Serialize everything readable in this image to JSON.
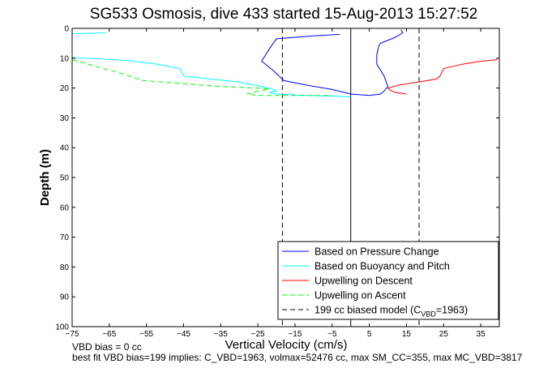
{
  "chart_data": {
    "type": "line",
    "title": "SG533 Osmosis, dive 433 started 15-Aug-2013 15:27:52",
    "xlabel": "Vertical Velocity (cm/s)",
    "ylabel": "Depth (m)",
    "xlim": [
      -75,
      40
    ],
    "ylim": [
      0,
      100
    ],
    "y_reversed": true,
    "x_ticks": [
      -75,
      -65,
      -55,
      -45,
      -35,
      -25,
      -15,
      -5,
      5,
      15,
      25,
      35
    ],
    "x_tick_labels": [
      "−75",
      "−65",
      "−55",
      "−45",
      "−35",
      "−25",
      "−15",
      "−5",
      "5",
      "15",
      "25",
      "35"
    ],
    "y_ticks": [
      0,
      10,
      20,
      30,
      40,
      50,
      60,
      70,
      80,
      90,
      100
    ],
    "y_tick_labels": [
      "0",
      "10",
      "20",
      "30",
      "40",
      "50",
      "60",
      "70",
      "80",
      "90",
      "100"
    ],
    "grid": false,
    "legend_position": "bottom-right",
    "series": [
      {
        "name": "Based on Pressure Change",
        "color": "#0000ff",
        "style": "solid",
        "points": [
          [
            -3,
            2
          ],
          [
            -10,
            2.5
          ],
          [
            -20,
            3.5
          ],
          [
            -22,
            7
          ],
          [
            -24,
            11
          ],
          [
            -21,
            14
          ],
          [
            -18,
            17.5
          ],
          [
            -12,
            19
          ],
          [
            -5,
            20.5
          ],
          [
            0,
            22
          ],
          [
            5,
            22.5
          ],
          [
            8,
            22
          ],
          [
            9,
            21
          ],
          [
            10,
            19.5
          ],
          [
            9,
            16
          ],
          [
            7,
            12
          ],
          [
            7,
            9
          ],
          [
            7.5,
            6
          ],
          [
            8,
            5
          ],
          [
            12,
            3
          ],
          [
            14,
            1.5
          ],
          [
            13.5,
            0.5
          ]
        ]
      },
      {
        "name": "Based on Buoyancy and Pitch",
        "color": "#00ffff",
        "style": "solid",
        "points": [
          [
            -66,
            1.5
          ],
          [
            -75,
            1.8
          ],
          null,
          [
            -75,
            9.8
          ],
          [
            -68,
            10.2
          ],
          [
            -60,
            10.8
          ],
          [
            -52,
            12
          ],
          [
            -46,
            13.5
          ],
          [
            -45,
            16
          ],
          [
            -30,
            18
          ],
          [
            -22,
            20
          ],
          [
            -20,
            21
          ],
          [
            -22,
            21.5
          ],
          [
            -20,
            22
          ],
          [
            -12,
            22.5
          ],
          [
            -5,
            22.7
          ],
          [
            0,
            23
          ]
        ]
      },
      {
        "name": "Upwelling on Descent",
        "color": "#ff0000",
        "style": "solid",
        "points": [
          [
            39.5,
            10.5
          ],
          [
            35,
            11
          ],
          [
            30,
            12
          ],
          [
            25,
            13.5
          ],
          [
            24,
            16
          ],
          [
            23,
            17
          ],
          [
            18,
            18
          ],
          [
            13,
            19
          ],
          [
            10,
            20
          ],
          [
            11,
            21
          ],
          [
            12,
            21.5
          ],
          [
            15,
            22
          ]
        ]
      },
      {
        "name": "Upwelling on Ascent",
        "color": "#00ff00",
        "style": "dashed",
        "points": [
          [
            -75,
            10.5
          ],
          [
            -68,
            13
          ],
          [
            -62,
            15
          ],
          [
            -56,
            17.5
          ],
          [
            -45,
            18.5
          ],
          [
            -35,
            19.5
          ],
          [
            -25,
            20
          ],
          [
            -22,
            20.3
          ],
          [
            -25,
            21
          ],
          [
            -28,
            22
          ],
          [
            -25,
            22.5
          ],
          [
            -15,
            22.5
          ],
          [
            -5,
            22.5
          ]
        ]
      },
      {
        "name": "199 cc biased model (C_VBD=1963)",
        "color": "#000000",
        "style": "dashed",
        "lines": [
          {
            "x": -18.4
          },
          {
            "x": 18.4
          }
        ]
      }
    ],
    "reference_line": {
      "x": 0,
      "color": "#000000",
      "style": "solid"
    },
    "legend_entries": [
      {
        "label": "Based on Pressure Change",
        "color": "#0000ff",
        "style": "solid"
      },
      {
        "label": "Based on Buoyancy and Pitch",
        "color": "#00ffff",
        "style": "solid"
      },
      {
        "label": "Upwelling on Descent",
        "color": "#ff0000",
        "style": "solid"
      },
      {
        "label": "Upwelling on Ascent",
        "color": "#00ff00",
        "style": "dashed"
      },
      {
        "label_main": "199 cc biased model (C",
        "label_sub": "VBD",
        "label_tail": "=1963)",
        "color": "#000000",
        "style": "dashed"
      }
    ]
  },
  "footer": {
    "line1": "VBD bias = 0 cc",
    "line2": "best fit VBD bias=199 implies: C_VBD=1963, volmax=52476 cc, max SM_CC=355, max MC_VBD=3817"
  }
}
